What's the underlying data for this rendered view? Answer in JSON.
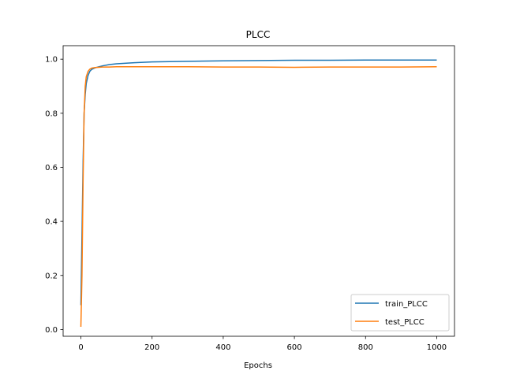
{
  "chart_data": {
    "type": "line",
    "title": "PLCC",
    "xlabel": "Epochs",
    "ylabel": "",
    "xlim": [
      -50,
      1050
    ],
    "ylim": [
      -0.025,
      1.05
    ],
    "xticks": [
      0,
      200,
      400,
      600,
      800,
      1000
    ],
    "yticks": [
      0.0,
      0.2,
      0.4,
      0.6,
      0.8,
      1.0
    ],
    "xtick_labels": [
      "0",
      "200",
      "400",
      "600",
      "800",
      "1000"
    ],
    "ytick_labels": [
      "0.0",
      "0.2",
      "0.4",
      "0.6",
      "0.8",
      "1.0"
    ],
    "grid": false,
    "legend_position": "lower-right",
    "series": [
      {
        "name": "train_PLCC",
        "color": "#1f77b4",
        "x": [
          0,
          3,
          6,
          9,
          12,
          15,
          20,
          25,
          30,
          40,
          50,
          60,
          80,
          100,
          150,
          200,
          300,
          400,
          500,
          600,
          700,
          800,
          900,
          1000
        ],
        "y": [
          0.09,
          0.35,
          0.62,
          0.8,
          0.87,
          0.91,
          0.94,
          0.955,
          0.962,
          0.968,
          0.972,
          0.975,
          0.98,
          0.983,
          0.987,
          0.99,
          0.992,
          0.994,
          0.995,
          0.996,
          0.996,
          0.997,
          0.997,
          0.997
        ]
      },
      {
        "name": "test_PLCC",
        "color": "#ff7f0e",
        "x": [
          0,
          3,
          6,
          9,
          12,
          15,
          20,
          25,
          30,
          40,
          50,
          60,
          80,
          100,
          150,
          200,
          300,
          400,
          500,
          600,
          700,
          800,
          900,
          1000
        ],
        "y": [
          0.01,
          0.2,
          0.55,
          0.8,
          0.9,
          0.935,
          0.955,
          0.963,
          0.967,
          0.969,
          0.97,
          0.971,
          0.971,
          0.972,
          0.972,
          0.972,
          0.972,
          0.971,
          0.971,
          0.97,
          0.971,
          0.971,
          0.971,
          0.972
        ]
      }
    ]
  }
}
